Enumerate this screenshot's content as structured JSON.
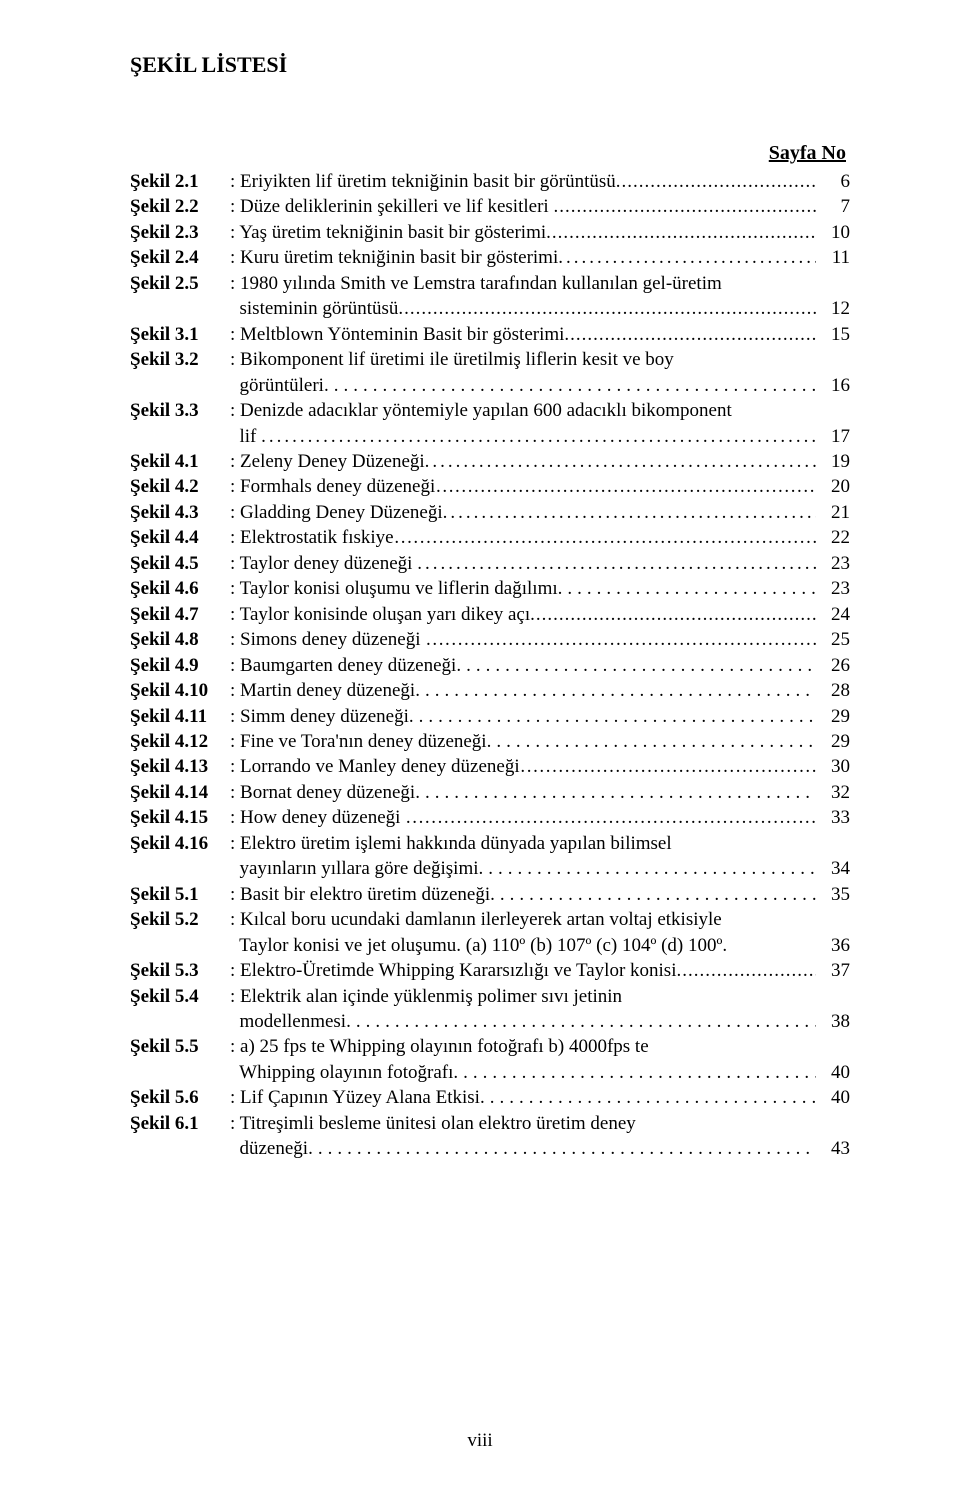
{
  "title": "ŞEKİL LİSTESİ",
  "page_header_right": "Sayfa No",
  "footer": "viii",
  "colors": {
    "text": "#000000",
    "background": "#ffffff"
  },
  "typography": {
    "font_family": "Times New Roman",
    "base_font_size_pt": 14,
    "title_font_size_pt": 16,
    "title_font_weight": "bold",
    "label_font_weight": "bold"
  },
  "entries": [
    {
      "label": "Şekil 2.1",
      "desc": ": Eriyikten lif üretim tekniğinin basit bir görüntüsü",
      "leader": "dots",
      "page": "6"
    },
    {
      "label": "Şekil 2.2",
      "desc": ": Düze deliklerinin şekilleri ve lif kesitleri ",
      "leader": "dots",
      "page": "7"
    },
    {
      "label": "Şekil 2.3",
      "desc": ": Yaş üretim tekniğinin basit bir gösterimi",
      "leader": "dots",
      "page": "10"
    },
    {
      "label": "Şekil 2.4",
      "desc": ": Kuru üretim tekniğinin basit bir gösterimi",
      "page": "11",
      "leader_group": "wide-low",
      "leader": "dots"
    },
    {
      "label": "Şekil 2.5",
      "desc": ": 1980 yılında Smith ve Lemstra tarafından kullanılan gel-üretim\n  sisteminin görüntüsü",
      "leader": "dots",
      "page": "12"
    },
    {
      "label": "Şekil 3.1",
      "desc": ": Meltblown Yönteminin Basit bir gösterimi",
      "leader": "dots",
      "page": "15"
    },
    {
      "label": "Şekil 3.2",
      "desc": ": Bikomponent lif üretimi ile üretilmiş liflerin kesit ve boy\n  görüntüleri",
      "leader": "low-dots",
      "leader_group": "lowwide",
      "page": "16"
    },
    {
      "label": "Şekil 3.3",
      "desc": ": Denizde adacıklar yöntemiyle yapılan 600 adacıklı bikomponent\n  lif ",
      "leader": "dots",
      "leader_group": "wide-low",
      "page": "17"
    },
    {
      "label": "Şekil 4.1",
      "desc": ": Zeleny Deney Düzeneği",
      "page": "19",
      "leader_group": "wide-low",
      "leader": "dots"
    },
    {
      "label": "Şekil 4.2",
      "desc": ": Formhals deney düzeneği",
      "leader": "ellipsis",
      "page": "20"
    },
    {
      "label": "Şekil 4.3",
      "desc": ": Gladding Deney Düzeneği",
      "page": "21",
      "leader_group": "wide-low",
      "leader": "dots"
    },
    {
      "label": "Şekil 4.4",
      "desc": ": Elektrostatik fıskiye",
      "leader": "ellipsis",
      "page": "22"
    },
    {
      "label": "Şekil 4.5",
      "desc": ": Taylor deney düzeneği ",
      "page": "23",
      "leader_group": "wide-low",
      "leader": "dots"
    },
    {
      "label": "Şekil 4.6",
      "desc": ": Taylor konisi oluşumu ve liflerin dağılımı",
      "leader": "low-dots",
      "leader_group": "lowwide",
      "page": "23"
    },
    {
      "label": "Şekil 4.7",
      "desc": ": Taylor konisinde oluşan yarı dikey açı",
      "leader": "dots",
      "page": "24"
    },
    {
      "label": "Şekil 4.8",
      "desc": ": Simons deney düzeneği ",
      "leader": "ellipsis",
      "page": "25"
    },
    {
      "label": "Şekil 4.9",
      "desc": ": Baumgarten deney düzeneği",
      "leader": "low-dots",
      "leader_group": "lowwide",
      "page": "26"
    },
    {
      "label": "Şekil 4.10",
      "desc": ": Martin deney düzeneği",
      "leader": "low-dots",
      "leader_group": "lowwide",
      "page": "28"
    },
    {
      "label": "Şekil 4.11",
      "desc": ": Simm deney düzeneği",
      "leader": "dots-triple",
      "leader_group": "lowwide",
      "page": "29"
    },
    {
      "label": "Şekil 4.12",
      "desc": ": Fine ve Tora'nın deney düzeneği",
      "leader": "low-dots",
      "leader_group": "lowwide",
      "page": "29"
    },
    {
      "label": "Şekil 4.13",
      "desc": ": Lorrando ve Manley deney düzeneği",
      "leader": "ellipsis",
      "page": "30"
    },
    {
      "label": "Şekil 4.14",
      "desc": ": Bornat deney düzeneği",
      "leader": "low-dots",
      "leader_group": "lowwide",
      "page": "32"
    },
    {
      "label": "Şekil 4.15",
      "desc": ": How deney düzeneği ",
      "leader": "ellipsis",
      "page": "33"
    },
    {
      "label": "Şekil 4.16",
      "desc": ": Elektro üretim işlemi hakkında dünyada yapılan bilimsel\n  yayınların yıllara göre değişimi",
      "leader": "low-dots",
      "leader_group": "lowwide",
      "page": "34"
    },
    {
      "label": "Şekil 5.1",
      "desc": ": Basit bir elektro üretim düzeneği",
      "leader": "low-dots",
      "leader_group": "lowwide",
      "page": "35"
    },
    {
      "label": "Şekil 5.2",
      "desc": ": Kılcal boru ucundaki damlanın ilerleyerek artan voltaj etkisiyle\n  Taylor konisi ve jet oluşumu. (a) 110º (b) 107º (c) 104º (d) 100º.",
      "leader": "none",
      "page": "36"
    },
    {
      "label": "Şekil 5.3",
      "desc": ": Elektro-Üretimde Whipping Kararsızlığı ve Taylor konisi",
      "leader": "low-dots",
      "page": "37"
    },
    {
      "label": "Şekil 5.4",
      "desc": ": Elektrik alan içinde yüklenmiş polimer sıvı jetinin\n  modellenmesi",
      "leader": "low-dots",
      "leader_group": "lowwide",
      "page": "38"
    },
    {
      "label": "Şekil 5.5",
      "desc": ": a) 25 fps te Whipping olayının fotoğrafı   b) 4000fps te\n  Whipping olayının fotoğrafı",
      "leader": "low-dots",
      "leader_group": "lowwide",
      "page": "40"
    },
    {
      "label": "Şekil 5.6",
      "desc": ": Lif Çapının Yüzey Alana Etkisi",
      "leader": "low-dots",
      "leader_group": "lowwide",
      "page": "40"
    },
    {
      "label": "Şekil 6.1",
      "desc": ": Titreşimli besleme ünitesi olan elektro üretim deney\n  düzeneği",
      "leader": "low-dots",
      "leader_group": "lowwide",
      "page": "43"
    }
  ]
}
